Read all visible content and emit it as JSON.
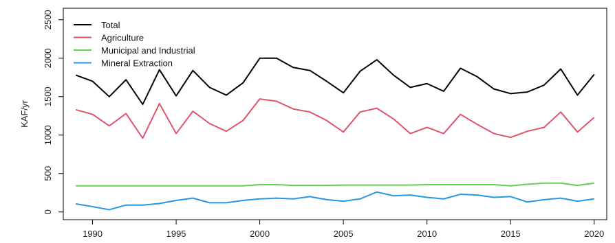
{
  "chart_data": {
    "type": "line",
    "title": "",
    "xlabel": "",
    "ylabel": "KAF/yr",
    "x": [
      1989,
      1990,
      1991,
      1992,
      1993,
      1994,
      1995,
      1996,
      1997,
      1998,
      1999,
      2000,
      2001,
      2002,
      2003,
      2004,
      2005,
      2006,
      2007,
      2008,
      2009,
      2010,
      2011,
      2012,
      2013,
      2014,
      2015,
      2016,
      2017,
      2018,
      2019,
      2020
    ],
    "xticks": [
      1990,
      1995,
      2000,
      2005,
      2010,
      2015,
      2020
    ],
    "yticks": [
      0,
      500,
      1000,
      1500,
      2000,
      2500
    ],
    "xlim": [
      1988.25,
      2020.75
    ],
    "ylim": [
      -100,
      2650
    ],
    "grid": false,
    "legend": "top-left",
    "series": [
      {
        "name": "Total",
        "color": "#000000",
        "values": [
          1780,
          1700,
          1500,
          1720,
          1400,
          1850,
          1510,
          1840,
          1620,
          1520,
          1680,
          2000,
          2000,
          1880,
          1840,
          1700,
          1550,
          1830,
          1980,
          1780,
          1620,
          1670,
          1570,
          1870,
          1760,
          1600,
          1540,
          1560,
          1650,
          1860,
          1520,
          1790
        ]
      },
      {
        "name": "Agriculture",
        "color": "#df536b",
        "values": [
          1330,
          1270,
          1120,
          1280,
          960,
          1410,
          1020,
          1310,
          1150,
          1050,
          1190,
          1470,
          1440,
          1340,
          1300,
          1190,
          1040,
          1300,
          1350,
          1210,
          1020,
          1100,
          1020,
          1270,
          1140,
          1020,
          970,
          1050,
          1100,
          1300,
          1040,
          1230
        ]
      },
      {
        "name": "Municipal and Industrial",
        "color": "#61d04f",
        "values": [
          340,
          340,
          340,
          340,
          340,
          340,
          340,
          340,
          340,
          340,
          340,
          355,
          355,
          345,
          345,
          345,
          350,
          350,
          350,
          350,
          350,
          355,
          355,
          355,
          355,
          355,
          340,
          360,
          375,
          375,
          345,
          375
        ]
      },
      {
        "name": "Mineral Extraction",
        "color": "#2297e6",
        "values": [
          105,
          70,
          30,
          90,
          90,
          110,
          150,
          180,
          120,
          120,
          150,
          170,
          180,
          170,
          200,
          160,
          140,
          170,
          260,
          210,
          220,
          190,
          170,
          230,
          220,
          190,
          200,
          130,
          160,
          180,
          140,
          170
        ]
      }
    ]
  }
}
